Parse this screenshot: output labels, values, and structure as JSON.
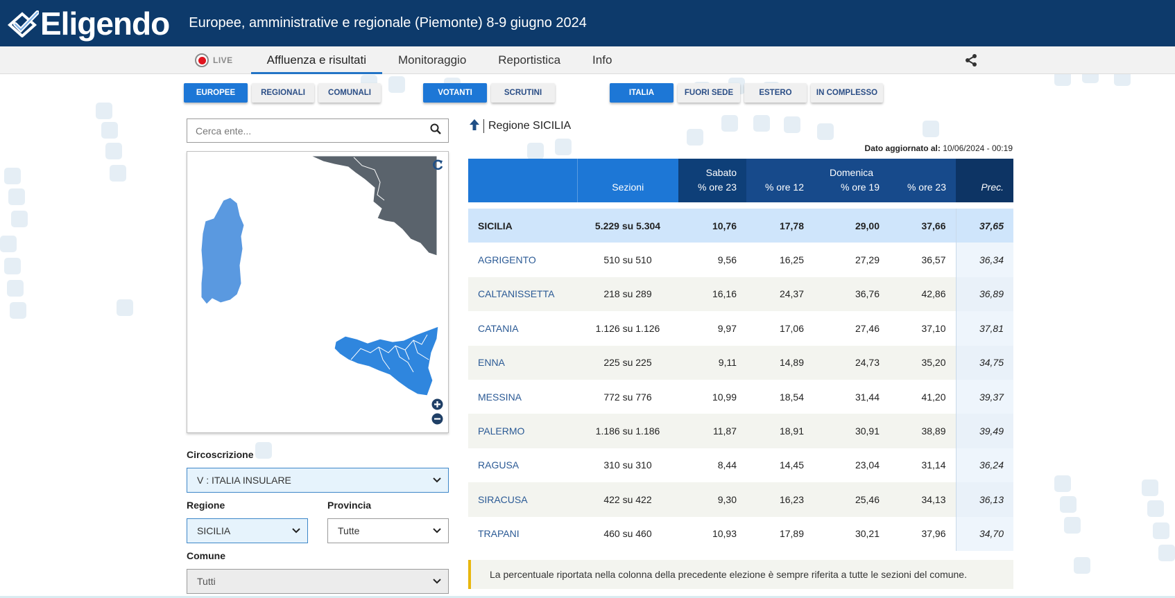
{
  "header": {
    "logo_text": "Eligendo",
    "election_title": "Europee, amministrative e regionale (Piemonte) 8-9 giugno 2024"
  },
  "nav": {
    "live_label": "LIVE",
    "items": [
      "Affluenza e risultati",
      "Monitoraggio",
      "Reportistica",
      "Info"
    ],
    "active": "Affluenza e risultati"
  },
  "filters": {
    "election_type": [
      "EUROPEE",
      "REGIONALI",
      "COMUNALI"
    ],
    "election_type_active": "EUROPEE",
    "data_type": [
      "VOTANTI",
      "SCRUTINI"
    ],
    "data_type_active": "VOTANTI",
    "scope": [
      "ITALIA",
      "FUORI SEDE",
      "ESTERO",
      "IN COMPLESSO"
    ],
    "scope_active": "ITALIA"
  },
  "search": {
    "placeholder": "Cerca ente..."
  },
  "form": {
    "circoscrizione_label": "Circoscrizione",
    "circoscrizione_value": "V : ITALIA INSULARE",
    "regione_label": "Regione",
    "regione_value": "SICILIA",
    "provincia_label": "Provincia",
    "provincia_value": "Tutte",
    "comune_label": "Comune",
    "comune_value": "Tutti"
  },
  "region": {
    "title": "Regione SICILIA",
    "updated_label": "Dato aggiornato al:",
    "updated_value": "10/06/2024 - 00:19"
  },
  "table": {
    "headers": {
      "sezioni": "Sezioni",
      "sabato": "Sabato",
      "sabato_ore23": "% ore 23",
      "domenica": "Domenica",
      "dom_ore12": "% ore 12",
      "dom_ore19": "% ore 19",
      "dom_ore23": "% ore 23",
      "prec": "Prec."
    },
    "rows": [
      {
        "name": "SICILIA",
        "sezioni": "5.229 su 5.304",
        "sab23": "10,76",
        "dom12": "17,78",
        "dom19": "29,00",
        "dom23": "37,66",
        "prec": "37,65"
      },
      {
        "name": "AGRIGENTO",
        "sezioni": "510 su 510",
        "sab23": "9,56",
        "dom12": "16,25",
        "dom19": "27,29",
        "dom23": "36,57",
        "prec": "36,34"
      },
      {
        "name": "CALTANISSETTA",
        "sezioni": "218 su 289",
        "sab23": "16,16",
        "dom12": "24,37",
        "dom19": "36,76",
        "dom23": "42,86",
        "prec": "36,89"
      },
      {
        "name": "CATANIA",
        "sezioni": "1.126 su 1.126",
        "sab23": "9,97",
        "dom12": "17,06",
        "dom19": "27,46",
        "dom23": "37,10",
        "prec": "37,81"
      },
      {
        "name": "ENNA",
        "sezioni": "225 su 225",
        "sab23": "9,11",
        "dom12": "14,89",
        "dom19": "24,73",
        "dom23": "35,20",
        "prec": "34,75"
      },
      {
        "name": "MESSINA",
        "sezioni": "772 su 776",
        "sab23": "10,99",
        "dom12": "18,54",
        "dom19": "31,44",
        "dom23": "41,20",
        "prec": "39,37"
      },
      {
        "name": "PALERMO",
        "sezioni": "1.186 su 1.186",
        "sab23": "11,87",
        "dom12": "18,91",
        "dom19": "30,91",
        "dom23": "38,89",
        "prec": "39,49"
      },
      {
        "name": "RAGUSA",
        "sezioni": "310 su 310",
        "sab23": "8,44",
        "dom12": "14,45",
        "dom19": "23,04",
        "dom23": "31,14",
        "prec": "36,24"
      },
      {
        "name": "SIRACUSA",
        "sezioni": "422 su 422",
        "sab23": "9,30",
        "dom12": "16,23",
        "dom19": "25,46",
        "dom23": "34,13",
        "prec": "36,13"
      },
      {
        "name": "TRAPANI",
        "sezioni": "460 su 460",
        "sab23": "10,93",
        "dom12": "17,89",
        "dom19": "30,21",
        "dom23": "37,96",
        "prec": "34,70"
      }
    ]
  },
  "note": "La percentuale riportata nella colonna della precedente elezione è sempre riferita a tutte le sezioni del comune.",
  "icons": {
    "logo": "checkbox-logo-icon",
    "share": "share-icon",
    "search": "search-icon",
    "up": "arrow-up-icon",
    "refresh": "refresh-icon",
    "zoom_in": "zoom-in-icon",
    "zoom_out": "zoom-out-icon",
    "chevron": "chevron-down-icon"
  },
  "colors": {
    "header_bg": "#0d3a6b",
    "accent": "#1d77d6",
    "map_selected": "#2f86de",
    "map_other": "#5a99e0",
    "map_neighbor": "#5a636c",
    "note_border": "#e8b70e"
  }
}
